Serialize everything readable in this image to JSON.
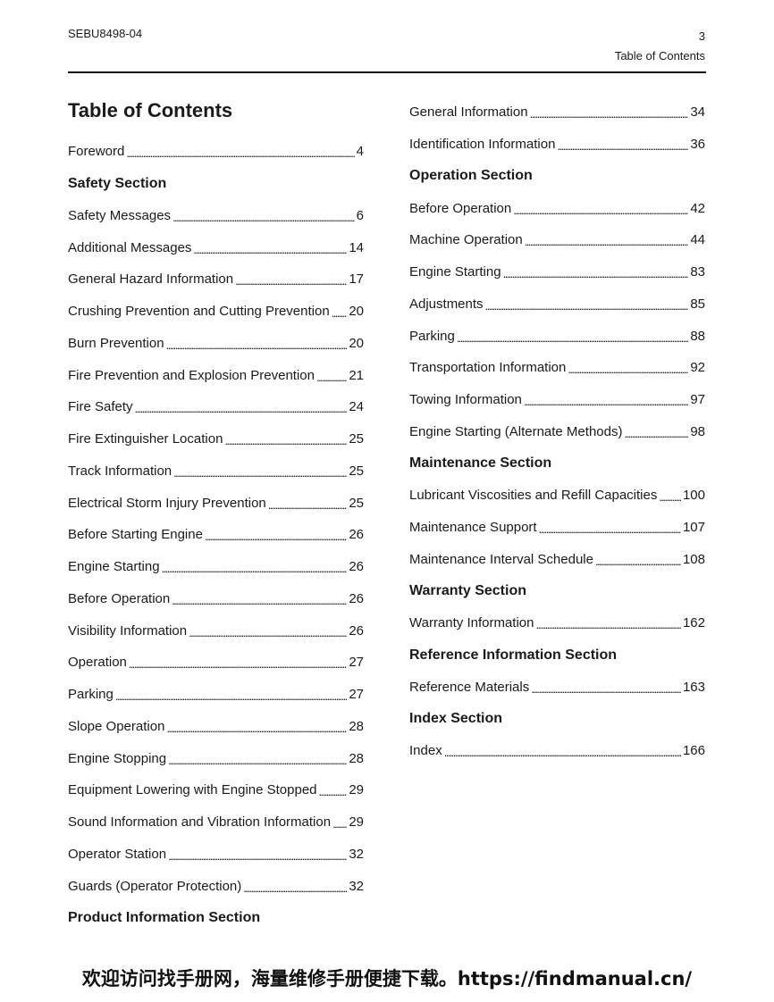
{
  "header": {
    "doc_id": "SEBU8498-04",
    "page_number": "3",
    "section": "Table of Contents"
  },
  "title": "Table of Contents",
  "left_column": [
    {
      "label": "Foreword",
      "page": "4"
    },
    {
      "heading": "Safety Section"
    },
    {
      "label": "Safety Messages",
      "page": "6"
    },
    {
      "label": "Additional Messages",
      "page": "14"
    },
    {
      "label": "General Hazard Information",
      "page": "17"
    },
    {
      "label": "Crushing Prevention and Cutting Prevention",
      "page": "20"
    },
    {
      "label": "Burn Prevention",
      "page": "20"
    },
    {
      "label": "Fire Prevention and Explosion Prevention",
      "page": "21"
    },
    {
      "label": "Fire Safety",
      "page": "24"
    },
    {
      "label": "Fire Extinguisher Location",
      "page": "25"
    },
    {
      "label": "Track Information",
      "page": "25"
    },
    {
      "label": "Electrical Storm Injury Prevention",
      "page": "25"
    },
    {
      "label": "Before Starting Engine",
      "page": "26"
    },
    {
      "label": "Engine Starting",
      "page": "26"
    },
    {
      "label": "Before Operation",
      "page": "26"
    },
    {
      "label": "Visibility Information",
      "page": "26"
    },
    {
      "label": "Operation",
      "page": "27"
    },
    {
      "label": "Parking",
      "page": "27"
    },
    {
      "label": "Slope Operation",
      "page": "28"
    },
    {
      "label": "Engine Stopping",
      "page": "28"
    },
    {
      "label": "Equipment Lowering with Engine Stopped",
      "page": "29"
    },
    {
      "label": "Sound Information and Vibration Information",
      "page": "29"
    },
    {
      "label": "Operator Station",
      "page": "32"
    },
    {
      "label": "Guards (Operator Protection)",
      "page": "32"
    },
    {
      "heading": "Product Information Section"
    }
  ],
  "right_column": [
    {
      "label": "General Information",
      "page": "34"
    },
    {
      "label": "Identification Information",
      "page": "36"
    },
    {
      "heading": "Operation Section"
    },
    {
      "label": "Before Operation",
      "page": "42"
    },
    {
      "label": "Machine Operation",
      "page": "44"
    },
    {
      "label": "Engine Starting",
      "page": "83"
    },
    {
      "label": "Adjustments",
      "page": "85"
    },
    {
      "label": "Parking",
      "page": "88"
    },
    {
      "label": "Transportation Information",
      "page": "92"
    },
    {
      "label": "Towing Information",
      "page": "97"
    },
    {
      "label": "Engine Starting (Alternate Methods)",
      "page": "98"
    },
    {
      "heading": "Maintenance Section"
    },
    {
      "label": "Lubricant Viscosities and Refill Capacities",
      "page": "100"
    },
    {
      "label": "Maintenance Support",
      "page": "107"
    },
    {
      "label": "Maintenance Interval Schedule",
      "page": "108"
    },
    {
      "heading": "Warranty Section"
    },
    {
      "label": "Warranty Information",
      "page": "162"
    },
    {
      "heading": "Reference Information Section"
    },
    {
      "label": "Reference Materials",
      "page": "163"
    },
    {
      "heading": "Index Section"
    },
    {
      "label": "Index",
      "page": "166"
    }
  ],
  "footer": {
    "watermark": "欢迎访问找手册网，海量维修手册便捷下载。https://findmanual.cn/"
  }
}
